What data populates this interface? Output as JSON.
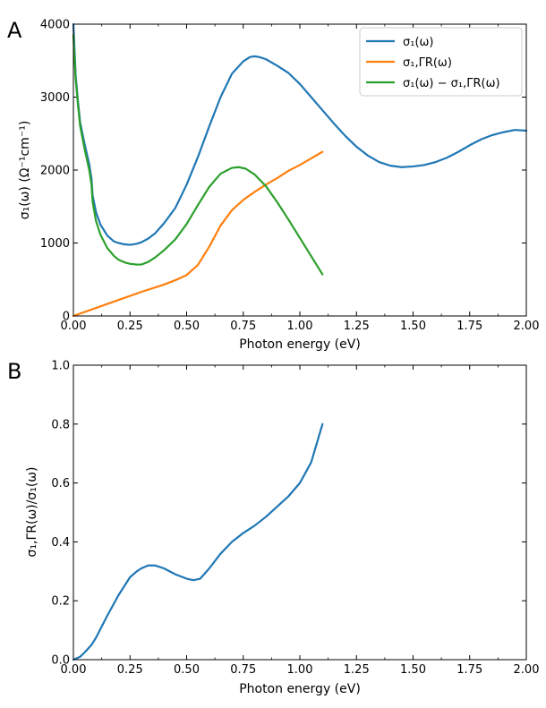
{
  "chart_data": [
    {
      "panel_label": "A",
      "type": "line",
      "xlabel": "Photon energy (eV)",
      "ylabel": "σ₁(ω) (Ω⁻¹cm⁻¹)",
      "xlim": [
        0,
        2.0
      ],
      "ylim": [
        0,
        4000
      ],
      "xticks": [
        "0.00",
        "0.25",
        "0.50",
        "0.75",
        "1.00",
        "1.25",
        "1.50",
        "1.75",
        "2.00"
      ],
      "yticks": [
        "0",
        "1000",
        "2000",
        "3000",
        "4000"
      ],
      "grid": false,
      "legend_position": "top-right",
      "series": [
        {
          "name": "σ₁(ω)",
          "color": "#1f77b4",
          "points": [
            [
              0.0,
              4000
            ],
            [
              0.01,
              3300
            ],
            [
              0.02,
              2950
            ],
            [
              0.03,
              2650
            ],
            [
              0.05,
              2350
            ],
            [
              0.07,
              2080
            ],
            [
              0.08,
              1880
            ],
            [
              0.085,
              1650
            ],
            [
              0.1,
              1420
            ],
            [
              0.12,
              1250
            ],
            [
              0.15,
              1100
            ],
            [
              0.18,
              1020
            ],
            [
              0.2,
              1000
            ],
            [
              0.22,
              985
            ],
            [
              0.25,
              975
            ],
            [
              0.28,
              990
            ],
            [
              0.3,
              1010
            ],
            [
              0.33,
              1060
            ],
            [
              0.36,
              1130
            ],
            [
              0.4,
              1270
            ],
            [
              0.45,
              1480
            ],
            [
              0.5,
              1800
            ],
            [
              0.55,
              2180
            ],
            [
              0.6,
              2600
            ],
            [
              0.65,
              3000
            ],
            [
              0.7,
              3320
            ],
            [
              0.75,
              3490
            ],
            [
              0.78,
              3550
            ],
            [
              0.8,
              3560
            ],
            [
              0.82,
              3550
            ],
            [
              0.85,
              3520
            ],
            [
              0.9,
              3430
            ],
            [
              0.95,
              3330
            ],
            [
              1.0,
              3180
            ],
            [
              1.05,
              3000
            ],
            [
              1.1,
              2820
            ],
            [
              1.15,
              2640
            ],
            [
              1.2,
              2470
            ],
            [
              1.25,
              2320
            ],
            [
              1.3,
              2200
            ],
            [
              1.35,
              2110
            ],
            [
              1.4,
              2060
            ],
            [
              1.45,
              2040
            ],
            [
              1.5,
              2050
            ],
            [
              1.55,
              2070
            ],
            [
              1.6,
              2110
            ],
            [
              1.65,
              2170
            ],
            [
              1.7,
              2250
            ],
            [
              1.75,
              2340
            ],
            [
              1.8,
              2420
            ],
            [
              1.85,
              2480
            ],
            [
              1.9,
              2520
            ],
            [
              1.95,
              2550
            ],
            [
              2.0,
              2540
            ]
          ]
        },
        {
          "name": "σ₁,ΓR(ω)",
          "color": "#ff7f0e",
          "points": [
            [
              0.0,
              0
            ],
            [
              0.1,
              110
            ],
            [
              0.2,
              220
            ],
            [
              0.3,
              330
            ],
            [
              0.4,
              430
            ],
            [
              0.45,
              490
            ],
            [
              0.5,
              560
            ],
            [
              0.55,
              700
            ],
            [
              0.6,
              950
            ],
            [
              0.65,
              1240
            ],
            [
              0.7,
              1450
            ],
            [
              0.75,
              1590
            ],
            [
              0.8,
              1700
            ],
            [
              0.85,
              1800
            ],
            [
              0.9,
              1890
            ],
            [
              0.95,
              1990
            ],
            [
              1.0,
              2070
            ],
            [
              1.05,
              2160
            ],
            [
              1.1,
              2250
            ]
          ]
        },
        {
          "name": "σ₁(ω) − σ₁,ΓR(ω)",
          "color": "#2ca02c",
          "points": [
            [
              0.0,
              3850
            ],
            [
              0.01,
              3250
            ],
            [
              0.02,
              2900
            ],
            [
              0.03,
              2600
            ],
            [
              0.05,
              2280
            ],
            [
              0.07,
              2000
            ],
            [
              0.08,
              1800
            ],
            [
              0.085,
              1560
            ],
            [
              0.1,
              1300
            ],
            [
              0.12,
              1110
            ],
            [
              0.15,
              930
            ],
            [
              0.18,
              820
            ],
            [
              0.2,
              770
            ],
            [
              0.23,
              730
            ],
            [
              0.25,
              715
            ],
            [
              0.28,
              705
            ],
            [
              0.3,
              705
            ],
            [
              0.33,
              740
            ],
            [
              0.36,
              800
            ],
            [
              0.4,
              900
            ],
            [
              0.45,
              1050
            ],
            [
              0.5,
              1260
            ],
            [
              0.55,
              1520
            ],
            [
              0.6,
              1770
            ],
            [
              0.65,
              1950
            ],
            [
              0.7,
              2030
            ],
            [
              0.73,
              2040
            ],
            [
              0.76,
              2020
            ],
            [
              0.8,
              1940
            ],
            [
              0.85,
              1780
            ],
            [
              0.9,
              1560
            ],
            [
              0.95,
              1320
            ],
            [
              1.0,
              1070
            ],
            [
              1.05,
              820
            ],
            [
              1.1,
              570
            ]
          ]
        }
      ]
    },
    {
      "panel_label": "B",
      "type": "line",
      "xlabel": "Photon energy (eV)",
      "ylabel": "σ₁,ΓR(ω)/σ₁(ω)",
      "xlim": [
        0,
        2.0
      ],
      "ylim": [
        0,
        1.0
      ],
      "xticks": [
        "0.00",
        "0.25",
        "0.50",
        "0.75",
        "1.00",
        "1.25",
        "1.50",
        "1.75",
        "2.00"
      ],
      "yticks": [
        "0.0",
        "0.2",
        "0.4",
        "0.6",
        "0.8",
        "1.0"
      ],
      "grid": false,
      "series": [
        {
          "color": "#1f77b4",
          "points": [
            [
              0.0,
              0.0
            ],
            [
              0.03,
              0.01
            ],
            [
              0.05,
              0.025
            ],
            [
              0.08,
              0.05
            ],
            [
              0.1,
              0.075
            ],
            [
              0.15,
              0.15
            ],
            [
              0.2,
              0.22
            ],
            [
              0.25,
              0.28
            ],
            [
              0.28,
              0.3
            ],
            [
              0.3,
              0.31
            ],
            [
              0.33,
              0.32
            ],
            [
              0.36,
              0.32
            ],
            [
              0.4,
              0.31
            ],
            [
              0.45,
              0.29
            ],
            [
              0.5,
              0.275
            ],
            [
              0.53,
              0.27
            ],
            [
              0.56,
              0.275
            ],
            [
              0.6,
              0.31
            ],
            [
              0.65,
              0.36
            ],
            [
              0.7,
              0.4
            ],
            [
              0.75,
              0.43
            ],
            [
              0.8,
              0.455
            ],
            [
              0.85,
              0.485
            ],
            [
              0.9,
              0.52
            ],
            [
              0.95,
              0.555
            ],
            [
              1.0,
              0.6
            ],
            [
              1.05,
              0.67
            ],
            [
              1.1,
              0.8
            ]
          ]
        }
      ]
    }
  ]
}
